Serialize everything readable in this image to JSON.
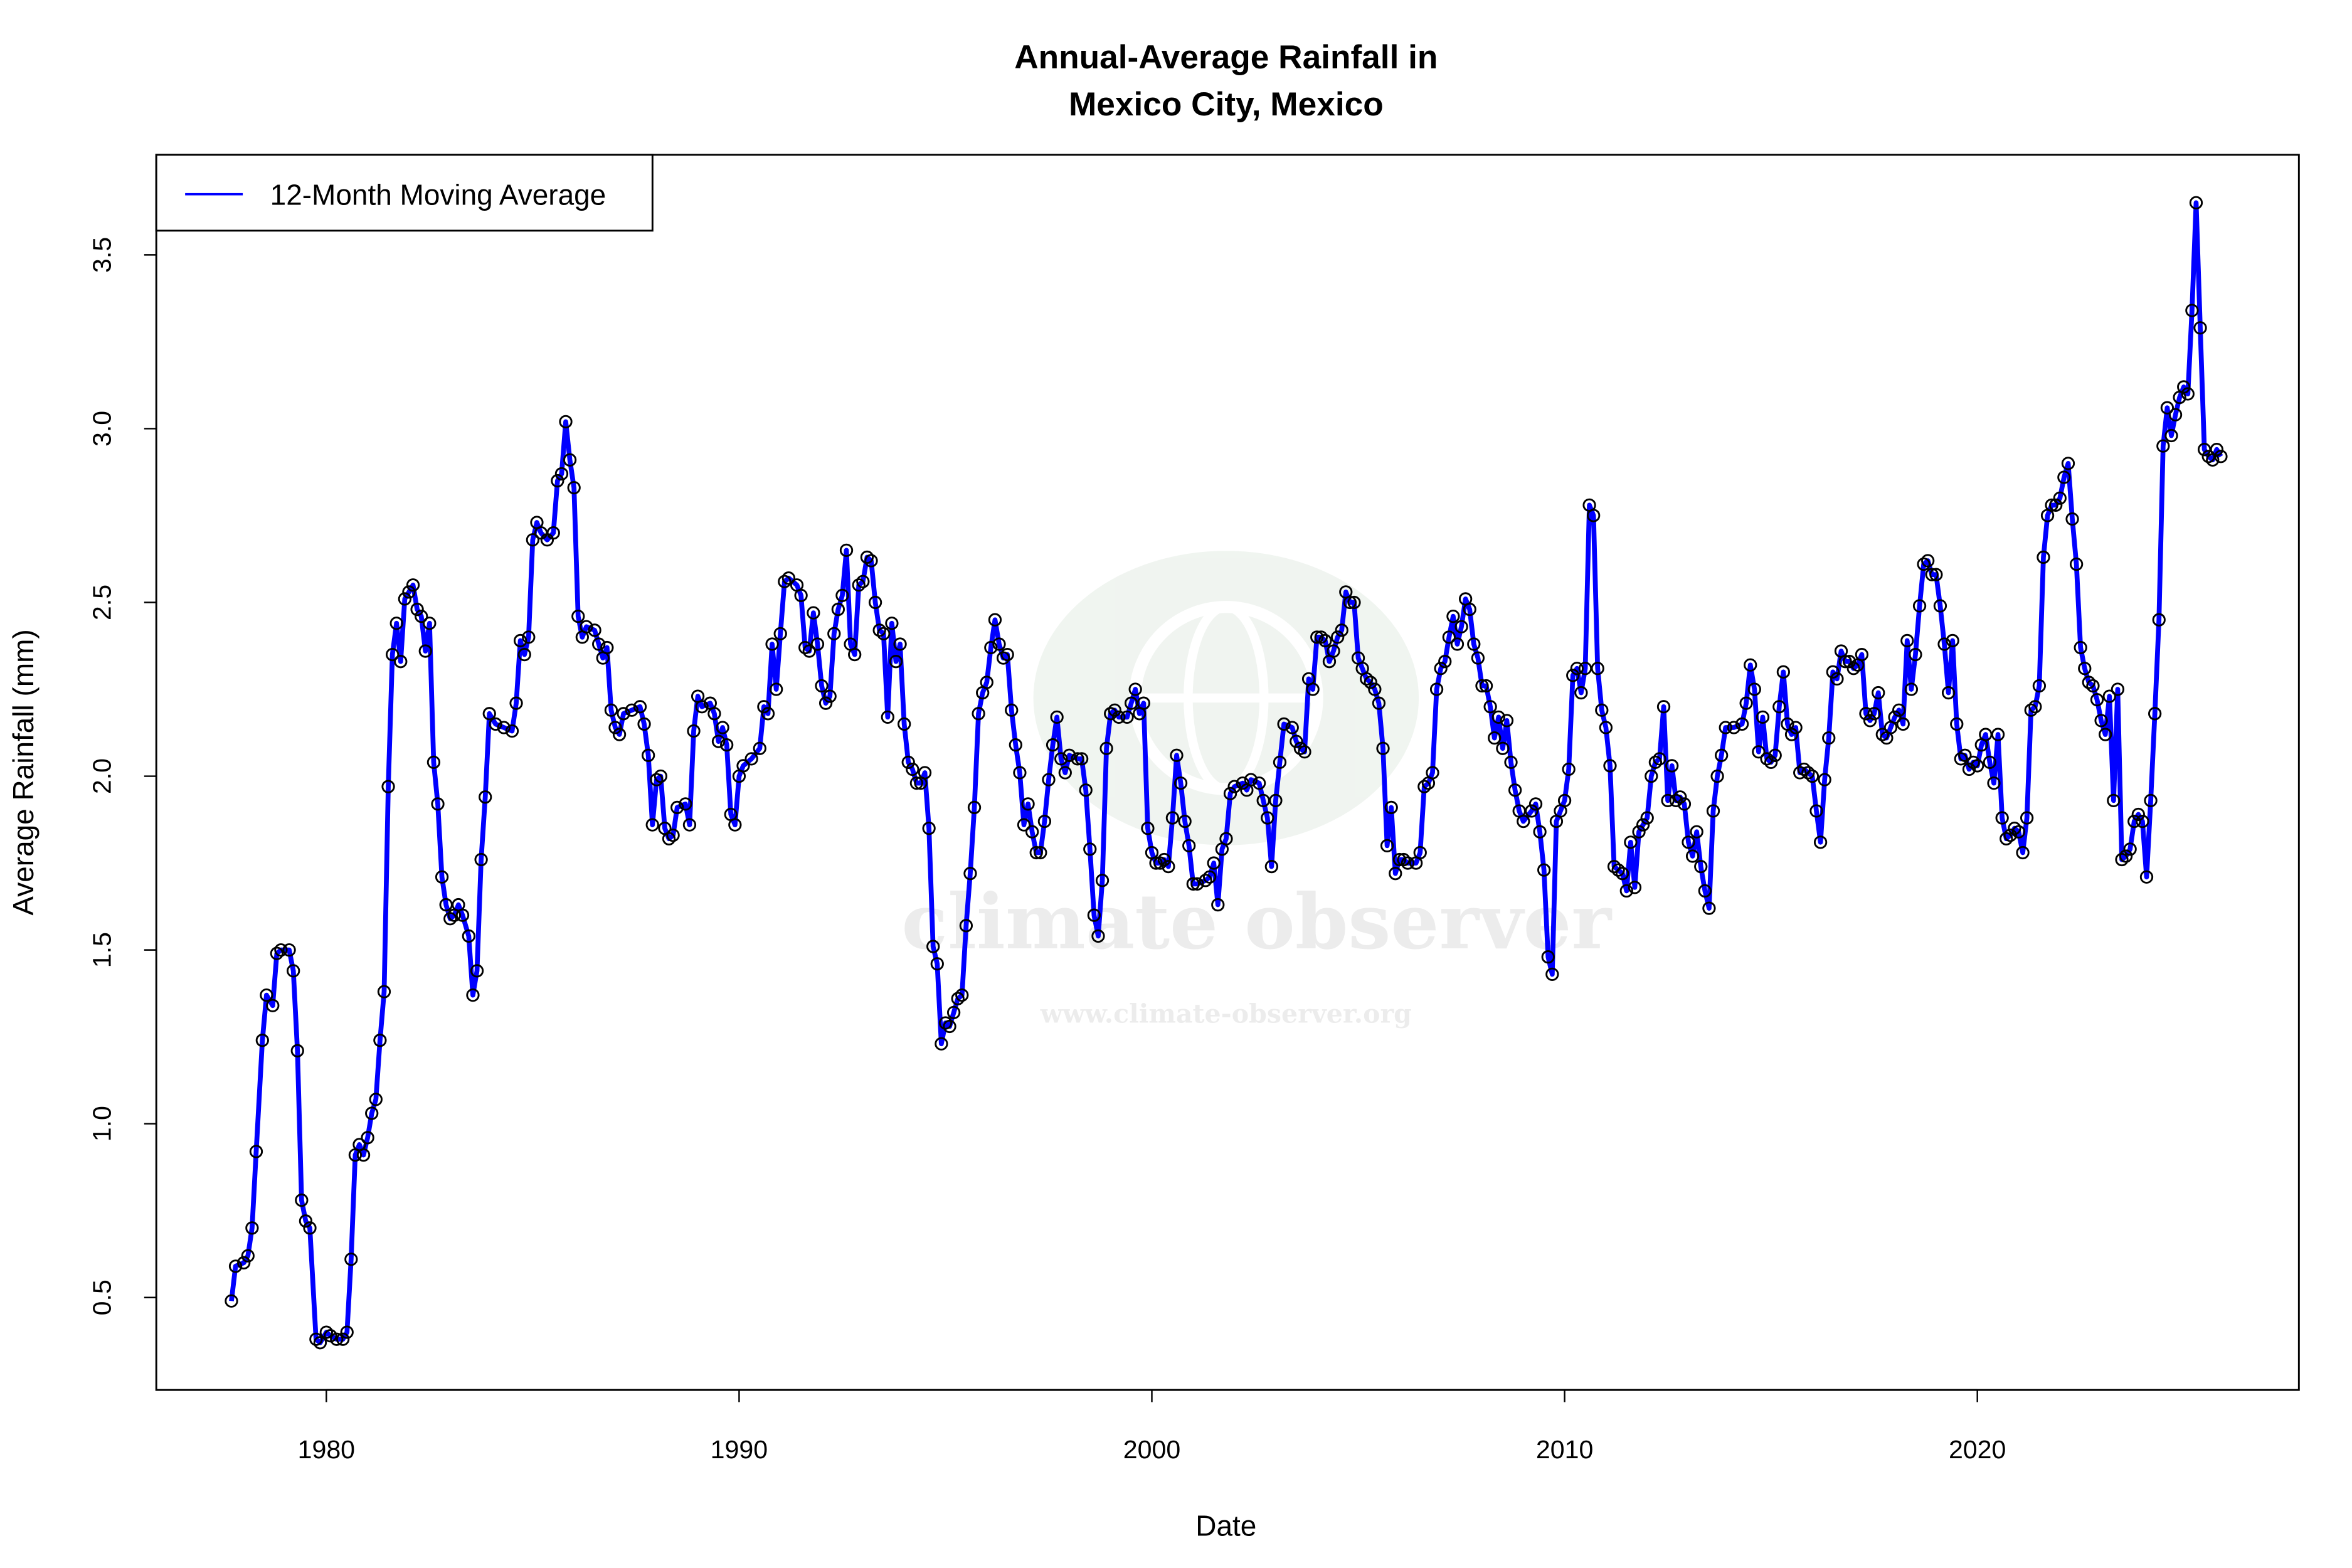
{
  "chart_data": {
    "type": "line",
    "title": [
      "Annual-Average Rainfall in",
      "Mexico City, Mexico"
    ],
    "x_label": "Date",
    "y_label": "Average Rainfall (mm)",
    "watermark": [
      "climate observer",
      "www.climate-observer.org"
    ],
    "legend": "topleft",
    "markers": true,
    "xlim": [
      1975.88,
      2027.79
    ],
    "xticks": [
      1980,
      1990,
      2000,
      2010,
      2020
    ],
    "ylim": [
      0.234,
      3.788
    ],
    "yticks": [
      0.5,
      {
        "value": 1,
        "label": "1.0"
      },
      1.5,
      {
        "value": 2,
        "label": "2.0"
      },
      2.5,
      {
        "value": 3,
        "label": "3.0"
      },
      3.5
    ],
    "x": [
      1977.7,
      1977.8,
      1978.0,
      1978.1,
      1978.2,
      1978.3,
      1978.45,
      1978.55,
      1978.7,
      1978.8,
      1978.9,
      1979.1,
      1979.2,
      1979.3,
      1979.4,
      1979.5,
      1979.6,
      1979.75,
      1979.85,
      1980.0,
      1980.1,
      1980.25,
      1980.4,
      1980.5,
      1980.6,
      1980.7,
      1980.8,
      1980.9,
      1981.0,
      1981.1,
      1981.2,
      1981.3,
      1981.4,
      1981.5,
      1981.6,
      1981.7,
      1981.8,
      1981.9,
      1982.0,
      1982.1,
      1982.2,
      1982.3,
      1982.4,
      1982.5,
      1982.6,
      1982.7,
      1982.8,
      1982.9,
      1983.0,
      1983.1,
      1983.2,
      1983.3,
      1983.45,
      1983.55,
      1983.65,
      1983.75,
      1983.85,
      1983.95,
      1984.1,
      1984.3,
      1984.5,
      1984.6,
      1984.7,
      1984.8,
      1984.9,
      1985.0,
      1985.1,
      1985.2,
      1985.35,
      1985.5,
      1985.6,
      1985.7,
      1985.8,
      1985.9,
      1986.0,
      1986.1,
      1986.2,
      1986.3,
      1986.5,
      1986.6,
      1986.7,
      1986.8,
      1986.9,
      1987.0,
      1987.1,
      1987.2,
      1987.4,
      1987.6,
      1987.7,
      1987.8,
      1987.9,
      1988.0,
      1988.1,
      1988.2,
      1988.3,
      1988.4,
      1988.5,
      1988.7,
      1988.8,
      1988.9,
      1989.0,
      1989.1,
      1989.3,
      1989.4,
      1989.5,
      1989.6,
      1989.7,
      1989.8,
      1989.9,
      1990.0,
      1990.1,
      1990.3,
      1990.5,
      1990.6,
      1990.7,
      1990.8,
      1990.9,
      1991.0,
      1991.1,
      1991.2,
      1991.4,
      1991.5,
      1991.6,
      1991.7,
      1991.8,
      1991.9,
      1992.0,
      1992.1,
      1992.2,
      1992.3,
      1992.4,
      1992.5,
      1992.6,
      1992.7,
      1992.8,
      1992.9,
      1993.0,
      1993.1,
      1993.2,
      1993.3,
      1993.4,
      1993.5,
      1993.6,
      1993.7,
      1993.8,
      1993.9,
      1994.0,
      1994.1,
      1994.2,
      1994.3,
      1994.4,
      1994.5,
      1994.6,
      1994.7,
      1994.8,
      1994.9,
      1995.0,
      1995.1,
      1995.2,
      1995.3,
      1995.4,
      1995.5,
      1995.6,
      1995.7,
      1995.8,
      1995.9,
      1996.0,
      1996.1,
      1996.2,
      1996.3,
      1996.4,
      1996.5,
      1996.6,
      1996.7,
      1996.8,
      1996.9,
      1997.0,
      1997.1,
      1997.2,
      1997.3,
      1997.4,
      1997.5,
      1997.6,
      1997.7,
      1997.8,
      1997.9,
      1998.0,
      1998.2,
      1998.3,
      1998.4,
      1998.5,
      1998.6,
      1998.7,
      1998.8,
      1998.9,
      1999.0,
      1999.1,
      1999.2,
      1999.4,
      1999.5,
      1999.6,
      1999.7,
      1999.8,
      1999.9,
      2000.0,
      2000.1,
      2000.2,
      2000.3,
      2000.4,
      2000.5,
      2000.6,
      2000.7,
      2000.8,
      2000.9,
      2001.0,
      2001.1,
      2001.3,
      2001.4,
      2001.5,
      2001.6,
      2001.7,
      2001.8,
      2001.9,
      2002.0,
      2002.2,
      2002.3,
      2002.4,
      2002.6,
      2002.7,
      2002.8,
      2002.9,
      2003.0,
      2003.1,
      2003.2,
      2003.4,
      2003.5,
      2003.6,
      2003.7,
      2003.8,
      2003.9,
      2004.0,
      2004.1,
      2004.2,
      2004.3,
      2004.4,
      2004.5,
      2004.6,
      2004.7,
      2004.8,
      2004.9,
      2005.0,
      2005.1,
      2005.2,
      2005.3,
      2005.4,
      2005.5,
      2005.6,
      2005.7,
      2005.8,
      2005.9,
      2006.0,
      2006.1,
      2006.2,
      2006.4,
      2006.5,
      2006.6,
      2006.7,
      2006.8,
      2006.9,
      2007.0,
      2007.1,
      2007.2,
      2007.3,
      2007.4,
      2007.5,
      2007.6,
      2007.7,
      2007.8,
      2007.9,
      2008.0,
      2008.1,
      2008.2,
      2008.3,
      2008.4,
      2008.5,
      2008.6,
      2008.7,
      2008.8,
      2008.9,
      2009.0,
      2009.2,
      2009.3,
      2009.4,
      2009.5,
      2009.6,
      2009.7,
      2009.8,
      2009.9,
      2010.0,
      2010.1,
      2010.2,
      2010.3,
      2010.4,
      2010.5,
      2010.6,
      2010.7,
      2010.8,
      2010.9,
      2011.0,
      2011.1,
      2011.2,
      2011.3,
      2011.4,
      2011.5,
      2011.6,
      2011.7,
      2011.8,
      2011.9,
      2012.0,
      2012.1,
      2012.2,
      2012.3,
      2012.4,
      2012.5,
      2012.6,
      2012.7,
      2012.8,
      2012.9,
      2013.0,
      2013.1,
      2013.2,
      2013.3,
      2013.4,
      2013.5,
      2013.6,
      2013.7,
      2013.8,
      2013.9,
      2014.1,
      2014.3,
      2014.4,
      2014.5,
      2014.6,
      2014.7,
      2014.8,
      2014.9,
      2015.0,
      2015.1,
      2015.2,
      2015.3,
      2015.4,
      2015.5,
      2015.6,
      2015.7,
      2015.8,
      2015.9,
      2016.0,
      2016.1,
      2016.2,
      2016.3,
      2016.4,
      2016.5,
      2016.6,
      2016.7,
      2016.8,
      2016.9,
      2017.0,
      2017.1,
      2017.2,
      2017.3,
      2017.4,
      2017.5,
      2017.6,
      2017.7,
      2017.8,
      2017.9,
      2018.0,
      2018.1,
      2018.2,
      2018.3,
      2018.4,
      2018.5,
      2018.6,
      2018.7,
      2018.8,
      2018.9,
      2019.0,
      2019.1,
      2019.2,
      2019.3,
      2019.4,
      2019.5,
      2019.6,
      2019.7,
      2019.8,
      2019.9,
      2020.0,
      2020.1,
      2020.2,
      2020.3,
      2020.4,
      2020.5,
      2020.6,
      2020.7,
      2020.8,
      2020.9,
      2021.0,
      2021.1,
      2021.2,
      2021.3,
      2021.4,
      2021.5,
      2021.6,
      2021.7,
      2021.8,
      2021.9,
      2022.0,
      2022.1,
      2022.2,
      2022.3,
      2022.4,
      2022.5,
      2022.6,
      2022.7,
      2022.8,
      2022.9,
      2023.0,
      2023.1,
      2023.2,
      2023.3,
      2023.4,
      2023.5,
      2023.6,
      2023.7,
      2023.8,
      2023.9,
      2024.0,
      2024.1,
      2024.2,
      2024.3,
      2024.4,
      2024.5,
      2024.6,
      2024.7,
      2024.8,
      2024.9,
      2025.0,
      2025.1,
      2025.2,
      2025.3,
      2025.4,
      2025.5,
      2025.6,
      2025.7,
      2025.8,
      2025.9
    ],
    "series": [
      {
        "name": "12-Month Moving Average",
        "color": "#0000ff",
        "marker_color": "#000000",
        "values": [
          0.49,
          0.59,
          0.6,
          0.62,
          0.7,
          0.92,
          1.24,
          1.37,
          1.34,
          1.49,
          1.5,
          1.5,
          1.44,
          1.21,
          0.78,
          0.72,
          0.7,
          0.38,
          0.37,
          0.4,
          0.39,
          0.38,
          0.38,
          0.4,
          0.61,
          0.91,
          0.94,
          0.91,
          0.96,
          1.03,
          1.07,
          1.24,
          1.38,
          1.97,
          2.35,
          2.44,
          2.33,
          2.51,
          2.53,
          2.55,
          2.48,
          2.46,
          2.36,
          2.44,
          2.04,
          1.92,
          1.71,
          1.63,
          1.59,
          1.6,
          1.63,
          1.6,
          1.54,
          1.37,
          1.44,
          1.76,
          1.94,
          2.18,
          2.15,
          2.14,
          2.13,
          2.21,
          2.39,
          2.35,
          2.4,
          2.68,
          2.73,
          2.7,
          2.68,
          2.7,
          2.85,
          2.87,
          3.02,
          2.91,
          2.83,
          2.46,
          2.4,
          2.43,
          2.42,
          2.38,
          2.34,
          2.37,
          2.19,
          2.14,
          2.12,
          2.18,
          2.19,
          2.2,
          2.15,
          2.06,
          1.86,
          1.99,
          2.0,
          1.85,
          1.82,
          1.83,
          1.91,
          1.92,
          1.86,
          2.13,
          2.23,
          2.2,
          2.21,
          2.18,
          2.1,
          2.14,
          2.09,
          1.89,
          1.86,
          2.0,
          2.03,
          2.05,
          2.08,
          2.2,
          2.18,
          2.38,
          2.25,
          2.41,
          2.56,
          2.57,
          2.55,
          2.52,
          2.37,
          2.36,
          2.47,
          2.38,
          2.26,
          2.21,
          2.23,
          2.41,
          2.48,
          2.52,
          2.65,
          2.38,
          2.35,
          2.55,
          2.56,
          2.63,
          2.62,
          2.5,
          2.42,
          2.41,
          2.17,
          2.44,
          2.33,
          2.38,
          2.15,
          2.04,
          2.02,
          1.98,
          1.98,
          2.01,
          1.85,
          1.51,
          1.46,
          1.23,
          1.29,
          1.28,
          1.32,
          1.36,
          1.37,
          1.57,
          1.72,
          1.91,
          2.18,
          2.24,
          2.27,
          2.37,
          2.45,
          2.38,
          2.34,
          2.35,
          2.19,
          2.09,
          2.01,
          1.86,
          1.92,
          1.84,
          1.78,
          1.78,
          1.87,
          1.99,
          2.09,
          2.17,
          2.05,
          2.01,
          2.06,
          2.05,
          2.05,
          1.96,
          1.79,
          1.6,
          1.54,
          1.7,
          2.08,
          2.18,
          2.19,
          2.17,
          2.17,
          2.21,
          2.25,
          2.18,
          2.21,
          1.85,
          1.78,
          1.75,
          1.75,
          1.76,
          1.74,
          1.88,
          2.06,
          1.98,
          1.87,
          1.8,
          1.69,
          1.69,
          1.7,
          1.71,
          1.75,
          1.63,
          1.79,
          1.82,
          1.95,
          1.97,
          1.98,
          1.96,
          1.99,
          1.98,
          1.93,
          1.88,
          1.74,
          1.93,
          2.04,
          2.15,
          2.14,
          2.1,
          2.08,
          2.07,
          2.28,
          2.25,
          2.4,
          2.4,
          2.39,
          2.33,
          2.36,
          2.4,
          2.42,
          2.53,
          2.5,
          2.5,
          2.34,
          2.31,
          2.28,
          2.27,
          2.25,
          2.21,
          2.08,
          1.8,
          1.91,
          1.72,
          1.76,
          1.76,
          1.75,
          1.75,
          1.78,
          1.97,
          1.98,
          2.01,
          2.25,
          2.31,
          2.33,
          2.4,
          2.46,
          2.38,
          2.43,
          2.51,
          2.48,
          2.38,
          2.34,
          2.26,
          2.26,
          2.2,
          2.11,
          2.17,
          2.08,
          2.16,
          2.04,
          1.96,
          1.9,
          1.87,
          1.9,
          1.92,
          1.84,
          1.73,
          1.48,
          1.43,
          1.87,
          1.9,
          1.93,
          2.02,
          2.29,
          2.31,
          2.24,
          2.31,
          2.78,
          2.75,
          2.31,
          2.19,
          2.14,
          2.03,
          1.74,
          1.73,
          1.72,
          1.67,
          1.81,
          1.68,
          1.84,
          1.86,
          1.88,
          2.0,
          2.04,
          2.05,
          2.2,
          1.93,
          2.03,
          1.93,
          1.94,
          1.92,
          1.81,
          1.77,
          1.84,
          1.74,
          1.67,
          1.62,
          1.9,
          2.0,
          2.06,
          2.14,
          2.14,
          2.15,
          2.21,
          2.32,
          2.25,
          2.07,
          2.17,
          2.05,
          2.04,
          2.06,
          2.2,
          2.3,
          2.15,
          2.12,
          2.14,
          2.01,
          2.02,
          2.01,
          2.0,
          1.9,
          1.81,
          1.99,
          2.11,
          2.3,
          2.28,
          2.36,
          2.33,
          2.33,
          2.31,
          2.32,
          2.35,
          2.18,
          2.16,
          2.18,
          2.24,
          2.12,
          2.11,
          2.14,
          2.17,
          2.19,
          2.15,
          2.39,
          2.25,
          2.35,
          2.49,
          2.61,
          2.62,
          2.58,
          2.58,
          2.49,
          2.38,
          2.24,
          2.39,
          2.15,
          2.05,
          2.06,
          2.02,
          2.04,
          2.03,
          2.09,
          2.12,
          2.04,
          1.98,
          2.12,
          1.88,
          1.82,
          1.83,
          1.85,
          1.84,
          1.78,
          1.88,
          2.19,
          2.2,
          2.26,
          2.63,
          2.75,
          2.78,
          2.78,
          2.8,
          2.86,
          2.9,
          2.74,
          2.61,
          2.37,
          2.31,
          2.27,
          2.26,
          2.22,
          2.16,
          2.12,
          2.23,
          1.93,
          2.25,
          1.76,
          1.77,
          1.79,
          1.87,
          1.89,
          1.87,
          1.71,
          1.93,
          2.18,
          2.45,
          2.95,
          3.06,
          2.98,
          3.04,
          3.09,
          3.12,
          3.1,
          3.34,
          3.65,
          3.29,
          2.94,
          2.92,
          2.91,
          2.94,
          2.92
        ]
      }
    ]
  }
}
